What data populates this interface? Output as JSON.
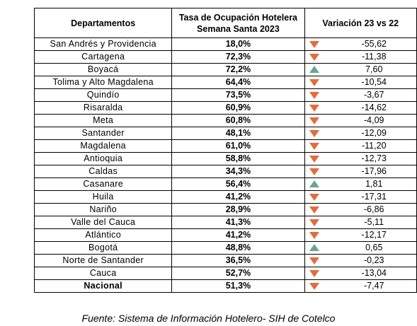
{
  "header": {
    "col1": "Departamentos",
    "col2_line1": "Tasa de Ocupación Hotelera",
    "col2_line2": "Semana Santa 2023",
    "col3": "Variación  23 vs 22"
  },
  "colors": {
    "down": "#e36c3a",
    "up": "#6aa68a"
  },
  "rows": [
    {
      "dept": "San Andrés y Providencia",
      "rate": "18,0%",
      "dir": "down",
      "var": "-55,62"
    },
    {
      "dept": "Cartagena",
      "rate": "72,3%",
      "dir": "down",
      "var": "-11,38"
    },
    {
      "dept": "Boyacá",
      "rate": "72,2%",
      "dir": "up",
      "var": "7,60"
    },
    {
      "dept": "Tolima y Alto Magdalena",
      "rate": "64,4%",
      "dir": "down",
      "var": "-10,54"
    },
    {
      "dept": "Quindío",
      "rate": "73,5%",
      "dir": "down",
      "var": "-3,67"
    },
    {
      "dept": "Risaralda",
      "rate": "60,9%",
      "dir": "down",
      "var": "-14,62"
    },
    {
      "dept": "Meta",
      "rate": "60,8%",
      "dir": "down",
      "var": "-4,09"
    },
    {
      "dept": "Santander",
      "rate": "48,1%",
      "dir": "down",
      "var": "-12,09"
    },
    {
      "dept": "Magdalena",
      "rate": "61,0%",
      "dir": "down",
      "var": "-11,20"
    },
    {
      "dept": "Antioquia",
      "rate": "58,8%",
      "dir": "down",
      "var": "-12,73"
    },
    {
      "dept": "Caldas",
      "rate": "34,3%",
      "dir": "down",
      "var": "-17,96"
    },
    {
      "dept": "Casanare",
      "rate": "56,4%",
      "dir": "up",
      "var": "1,81"
    },
    {
      "dept": "Huila",
      "rate": "41,2%",
      "dir": "down",
      "var": "-17,31"
    },
    {
      "dept": "Nariño",
      "rate": "28,9%",
      "dir": "down",
      "var": "-6,86"
    },
    {
      "dept": "Valle del Cauca",
      "rate": "41,3%",
      "dir": "down",
      "var": "-5,11"
    },
    {
      "dept": "Atlántico",
      "rate": "41,2%",
      "dir": "down",
      "var": "-12,17"
    },
    {
      "dept": "Bogotá",
      "rate": "48,8%",
      "dir": "up",
      "var": "0,65"
    },
    {
      "dept": "Norte de Santander",
      "rate": "36,5%",
      "dir": "down",
      "var": "-0,23"
    },
    {
      "dept": "Cauca",
      "rate": "52,7%",
      "dir": "down",
      "var": "-13,04"
    }
  ],
  "total": {
    "dept": "Nacional",
    "rate": "51,3%",
    "dir": "down",
    "var": "-7,47"
  },
  "source": "Fuente: Sistema de Información Hotelero- SIH de Cotelco"
}
